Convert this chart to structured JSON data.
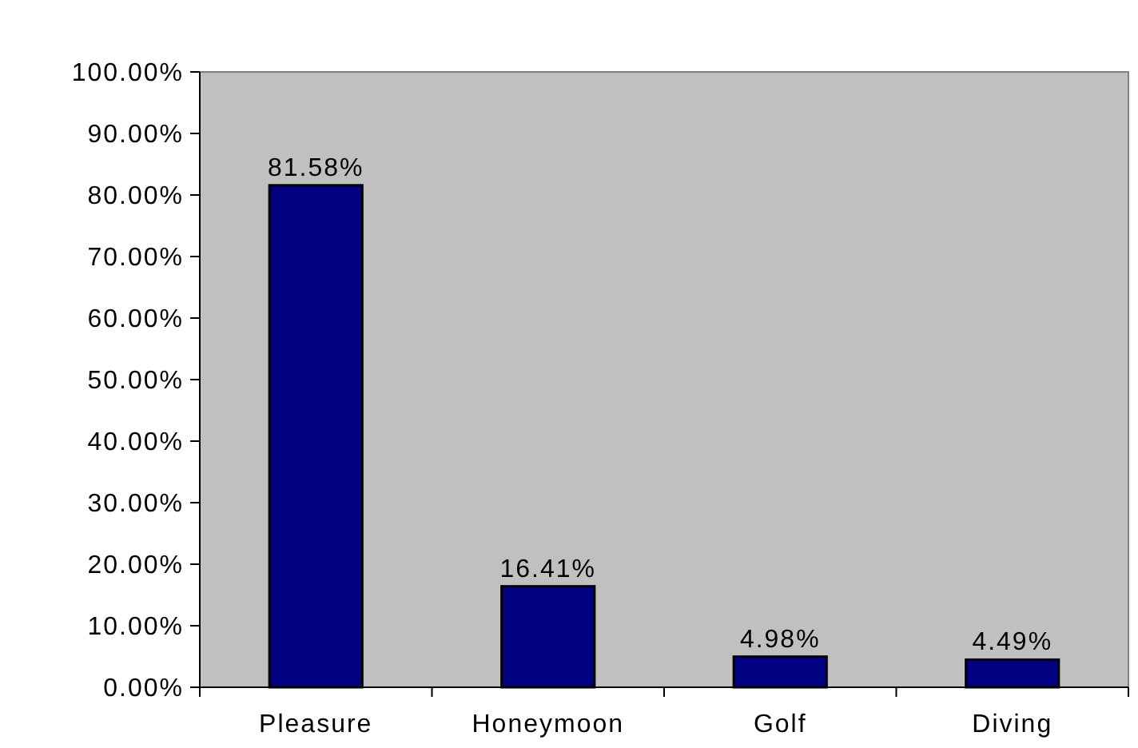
{
  "chart_data": {
    "type": "bar",
    "categories": [
      "Pleasure",
      "Honeymoon",
      "Golf",
      "Diving"
    ],
    "values": [
      81.58,
      16.41,
      4.98,
      4.49
    ],
    "value_labels": [
      "81.58%",
      "16.41%",
      "4.98%",
      "4.49%"
    ],
    "color": "#000080",
    "ylim": [
      0,
      100
    ],
    "yticks": [
      {
        "value": 0,
        "label": "0.00%"
      },
      {
        "value": 10,
        "label": "10.00%"
      },
      {
        "value": 20,
        "label": "20.00%"
      },
      {
        "value": 30,
        "label": "30.00%"
      },
      {
        "value": 40,
        "label": "40.00%"
      },
      {
        "value": 50,
        "label": "50.00%"
      },
      {
        "value": 60,
        "label": "60.00%"
      },
      {
        "value": 70,
        "label": "70.00%"
      },
      {
        "value": 80,
        "label": "80.00%"
      },
      {
        "value": 90,
        "label": "90.00%"
      },
      {
        "value": 100,
        "label": "100.00%"
      }
    ],
    "grid": false
  }
}
